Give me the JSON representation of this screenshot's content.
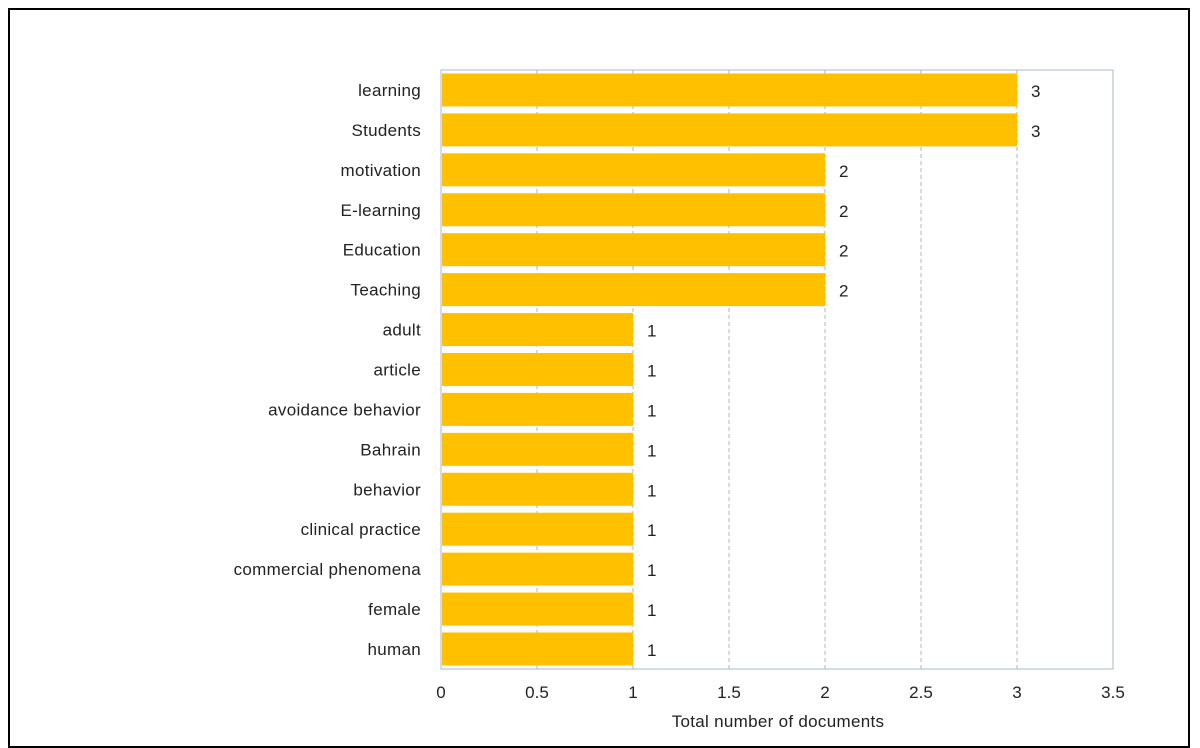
{
  "chart_data": {
    "type": "bar",
    "orientation": "horizontal",
    "categories": [
      "learning",
      "Students",
      "motivation",
      "E-learning",
      "Education",
      "Teaching",
      "adult",
      "article",
      "avoidance behavior",
      "Bahrain",
      "behavior",
      "clinical practice",
      "commercial phenomena",
      "female",
      "human"
    ],
    "values": [
      3,
      3,
      2,
      2,
      2,
      2,
      1,
      1,
      1,
      1,
      1,
      1,
      1,
      1,
      1
    ],
    "value_labels": [
      "3",
      "3",
      "2",
      "2",
      "2",
      "2",
      "1",
      "1",
      "1",
      "1",
      "1",
      "1",
      "1",
      "1",
      "1"
    ],
    "xlabel": "Total number of documents",
    "ylabel": "",
    "xlim": [
      0,
      3.5
    ],
    "x_ticks": [
      "0",
      "0.5",
      "1",
      "1.5",
      "2",
      "2.5",
      "3",
      "3.5"
    ],
    "x_tick_values": [
      0,
      0.5,
      1,
      1.5,
      2,
      2.5,
      3,
      3.5
    ],
    "grid": "vertical dashed",
    "colors": {
      "bar": "#FFC000",
      "grid": "#A9B7C6",
      "plot_border": "#A9B7C6",
      "text": "#222222"
    }
  }
}
